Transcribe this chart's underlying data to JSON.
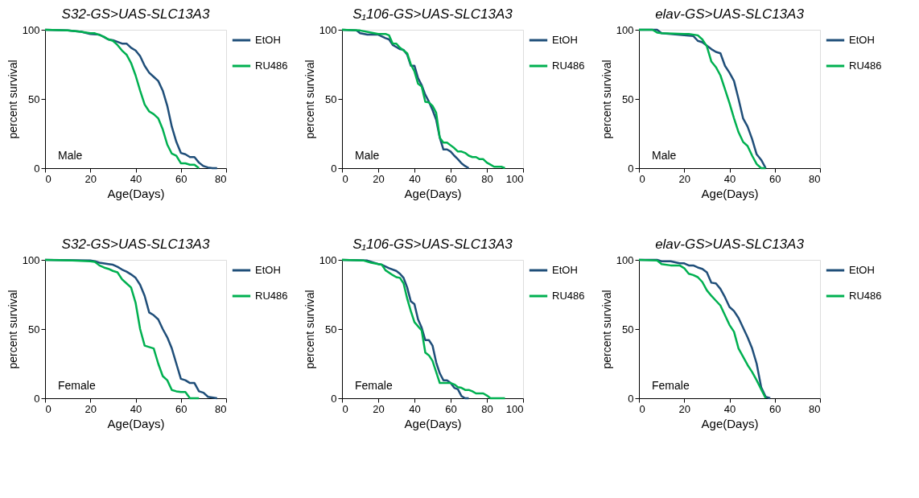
{
  "chart_data": [
    {
      "type": "line",
      "title": "S32-GS>UAS-SLC13A3",
      "xlabel": "Age(Days)",
      "ylabel": "percent survival",
      "xlim": [
        0,
        80
      ],
      "ylim": [
        0,
        100
      ],
      "xticks": [
        0,
        20,
        40,
        60,
        80
      ],
      "yticks": [
        0,
        50,
        100
      ],
      "grid": false,
      "legend": "top right",
      "annotations": [
        "Male"
      ],
      "series": [
        {
          "name": "EtOH",
          "color": "#1f4e79",
          "x": [
            0,
            10,
            16,
            20,
            24,
            28,
            30,
            34,
            36,
            38,
            40,
            42,
            44,
            46,
            48,
            50,
            52,
            54,
            56,
            58,
            60,
            62,
            64,
            66,
            68,
            70,
            72,
            74,
            76
          ],
          "values": [
            100,
            99.5,
            98.5,
            97,
            96.5,
            93,
            92.5,
            90,
            90,
            87,
            85,
            81,
            74,
            69,
            66,
            63,
            56,
            45,
            30,
            19,
            11,
            10,
            8,
            8,
            4,
            1.5,
            0.5,
            0,
            0
          ]
        },
        {
          "name": "RU486",
          "color": "#00b050",
          "x": [
            0,
            10,
            16,
            20,
            22,
            26,
            28,
            30,
            32,
            34,
            36,
            38,
            40,
            42,
            44,
            46,
            48,
            50,
            52,
            54,
            56,
            58,
            60,
            62,
            64,
            66,
            68
          ],
          "values": [
            100,
            99.5,
            98.5,
            97.5,
            97.5,
            95,
            93,
            92,
            89,
            85,
            82,
            76,
            67,
            56,
            46,
            41,
            39,
            36,
            28,
            17,
            10.5,
            9,
            3.5,
            3.5,
            2.5,
            2.5,
            0
          ]
        }
      ]
    },
    {
      "type": "line",
      "title": "S₁106-GS>UAS-SLC13A3",
      "xlabel": "Age(Days)",
      "ylabel": "percent survival",
      "xlim": [
        0,
        100
      ],
      "ylim": [
        0,
        100
      ],
      "xticks": [
        0,
        20,
        40,
        60,
        80,
        100
      ],
      "yticks": [
        0,
        50,
        100
      ],
      "grid": false,
      "legend": "top right",
      "annotations": [
        "Male"
      ],
      "series": [
        {
          "name": "EtOH",
          "color": "#1f4e79",
          "x": [
            0,
            8,
            10,
            14,
            20,
            24,
            26,
            28,
            30,
            32,
            34,
            36,
            38,
            40,
            42,
            44,
            46,
            48,
            50,
            52,
            54,
            56,
            58,
            60,
            62,
            64,
            66,
            68,
            70
          ],
          "values": [
            100,
            99.5,
            97.5,
            96.5,
            96.5,
            94,
            93,
            89,
            87.5,
            86,
            85.5,
            82,
            74,
            74,
            65,
            60,
            53,
            48,
            42,
            35,
            22,
            13.5,
            13.5,
            12,
            9,
            6.5,
            3.5,
            1.5,
            0
          ]
        },
        {
          "name": "RU486",
          "color": "#00b050",
          "x": [
            0,
            10,
            16,
            20,
            24,
            26,
            28,
            30,
            32,
            34,
            36,
            38,
            40,
            42,
            44,
            46,
            48,
            50,
            52,
            54,
            56,
            58,
            60,
            62,
            64,
            66,
            68,
            70,
            72,
            74,
            76,
            78,
            80,
            82,
            84,
            88,
            90
          ],
          "values": [
            100,
            99.5,
            98,
            97,
            97,
            96,
            90,
            90,
            87,
            85,
            83,
            75,
            70,
            61,
            59,
            48,
            47.5,
            45,
            40,
            22,
            18.5,
            18.5,
            16.5,
            14.5,
            12,
            12,
            11,
            9,
            8,
            8,
            6.5,
            6.5,
            4,
            2.5,
            1,
            1,
            0
          ]
        }
      ]
    },
    {
      "type": "line",
      "title": "elav-GS>UAS-SLC13A3",
      "xlabel": "Age(Days)",
      "ylabel": "percent survival",
      "xlim": [
        0,
        80
      ],
      "ylim": [
        0,
        100
      ],
      "xticks": [
        0,
        20,
        40,
        60,
        80
      ],
      "yticks": [
        0,
        50,
        100
      ],
      "grid": false,
      "legend": "top right",
      "annotations": [
        "Male"
      ],
      "series": [
        {
          "name": "EtOH",
          "color": "#1f4e79",
          "x": [
            0,
            8,
            10,
            20,
            24,
            26,
            28,
            30,
            32,
            34,
            36,
            38,
            40,
            42,
            44,
            46,
            48,
            50,
            52,
            54,
            56
          ],
          "values": [
            100,
            100,
            97.5,
            96,
            95.5,
            92,
            91,
            88.5,
            86,
            84,
            83,
            74,
            69,
            63,
            50,
            36,
            30,
            21,
            10,
            6,
            0
          ]
        },
        {
          "name": "RU486",
          "color": "#00b050",
          "x": [
            0,
            6,
            8,
            10,
            20,
            22,
            26,
            28,
            30,
            32,
            34,
            36,
            38,
            40,
            42,
            44,
            46,
            48,
            50,
            52,
            54,
            56
          ],
          "values": [
            100,
            100,
            98,
            97.5,
            97,
            97,
            96,
            93,
            88,
            77,
            73,
            67,
            57,
            47,
            36,
            26,
            19,
            16,
            9,
            3,
            0,
            0
          ]
        }
      ]
    },
    {
      "type": "line",
      "title": "S32-GS>UAS-SLC13A3",
      "xlabel": "Age(Days)",
      "ylabel": "percent survival",
      "xlim": [
        0,
        80
      ],
      "ylim": [
        0,
        100
      ],
      "xticks": [
        0,
        20,
        40,
        60,
        80
      ],
      "yticks": [
        0,
        50,
        100
      ],
      "grid": false,
      "legend": "top right",
      "annotations": [
        "Female"
      ],
      "series": [
        {
          "name": "EtOH",
          "color": "#1f4e79",
          "x": [
            0,
            20,
            22,
            24,
            28,
            30,
            32,
            34,
            36,
            38,
            40,
            42,
            44,
            46,
            48,
            50,
            52,
            54,
            56,
            58,
            60,
            62,
            64,
            66,
            68,
            70,
            72,
            76
          ],
          "values": [
            100,
            99.5,
            99,
            98,
            97,
            96.5,
            95,
            93,
            91.5,
            89.5,
            87,
            82,
            74,
            62,
            60,
            57,
            50,
            44,
            36,
            25,
            14,
            13,
            11,
            11,
            5,
            4,
            1,
            0
          ]
        },
        {
          "name": "RU486",
          "color": "#00b050",
          "x": [
            0,
            12,
            20,
            22,
            24,
            26,
            28,
            30,
            32,
            34,
            36,
            38,
            40,
            42,
            44,
            46,
            48,
            50,
            52,
            54,
            56,
            58,
            60,
            62,
            64,
            68
          ],
          "values": [
            100,
            99.5,
            99,
            98.5,
            96,
            94.5,
            93.5,
            92,
            91,
            86,
            83,
            80,
            69,
            50,
            38,
            37,
            36,
            25,
            16,
            13,
            6,
            5,
            4.5,
            4.5,
            0,
            0
          ]
        }
      ]
    },
    {
      "type": "line",
      "title": "S₁106-GS>UAS-SLC13A3",
      "xlabel": "Age(Days)",
      "ylabel": "percent survival",
      "xlim": [
        0,
        100
      ],
      "ylim": [
        0,
        100
      ],
      "xticks": [
        0,
        20,
        40,
        60,
        80,
        100
      ],
      "yticks": [
        0,
        50,
        100
      ],
      "grid": false,
      "legend": "top right",
      "annotations": [
        "Female"
      ],
      "series": [
        {
          "name": "EtOH",
          "color": "#1f4e79",
          "x": [
            0,
            14,
            20,
            22,
            26,
            30,
            32,
            34,
            36,
            38,
            40,
            42,
            44,
            46,
            48,
            50,
            52,
            54,
            56,
            58,
            60,
            62,
            64,
            66,
            68,
            70
          ],
          "values": [
            100,
            99.5,
            97,
            96.5,
            94,
            92,
            90,
            87,
            80,
            70,
            68,
            57,
            51,
            42,
            42,
            38,
            26,
            18,
            13,
            13,
            11,
            7.5,
            6.5,
            1.5,
            0,
            0
          ]
        },
        {
          "name": "RU486",
          "color": "#00b050",
          "x": [
            0,
            12,
            16,
            20,
            22,
            24,
            28,
            30,
            32,
            34,
            36,
            38,
            40,
            42,
            44,
            46,
            48,
            50,
            52,
            54,
            58,
            60,
            62,
            64,
            66,
            68,
            70,
            72,
            74,
            78,
            80,
            82,
            90
          ],
          "values": [
            100,
            99.5,
            98,
            97,
            96.5,
            92.5,
            89,
            87.5,
            87,
            83,
            72,
            63,
            55,
            52,
            49,
            33,
            31,
            27,
            19,
            11,
            11,
            11,
            10,
            8,
            7.5,
            6,
            6,
            5,
            3.5,
            3.5,
            2,
            0,
            0
          ]
        }
      ]
    },
    {
      "type": "line",
      "title": "elav-GS>UAS-SLC13A3",
      "xlabel": "Age(Days)",
      "ylabel": "percent survival",
      "xlim": [
        0,
        80
      ],
      "ylim": [
        0,
        100
      ],
      "xticks": [
        0,
        20,
        40,
        60,
        80
      ],
      "yticks": [
        0,
        50,
        100
      ],
      "grid": false,
      "legend": "top right",
      "annotations": [
        "Female"
      ],
      "series": [
        {
          "name": "EtOH",
          "color": "#1f4e79",
          "x": [
            0,
            8,
            10,
            14,
            18,
            20,
            22,
            24,
            26,
            28,
            30,
            32,
            34,
            36,
            38,
            40,
            42,
            44,
            46,
            48,
            50,
            52,
            54,
            56,
            58
          ],
          "values": [
            100,
            100,
            99,
            99,
            97.5,
            97.5,
            96,
            96,
            94.5,
            93.5,
            91,
            83.5,
            83,
            79,
            73,
            66,
            63,
            58,
            51,
            44,
            36,
            25,
            8,
            1,
            0
          ]
        },
        {
          "name": "RU486",
          "color": "#00b050",
          "x": [
            0,
            8,
            10,
            14,
            18,
            20,
            22,
            24,
            26,
            28,
            30,
            32,
            34,
            36,
            38,
            40,
            42,
            44,
            46,
            48,
            50,
            52,
            54,
            56
          ],
          "values": [
            100,
            99.5,
            97,
            96,
            96,
            94,
            90,
            89,
            87.5,
            84,
            78,
            74,
            70.5,
            67,
            60,
            53,
            48,
            36,
            30,
            24,
            19,
            13,
            6.5,
            0
          ]
        }
      ]
    }
  ]
}
